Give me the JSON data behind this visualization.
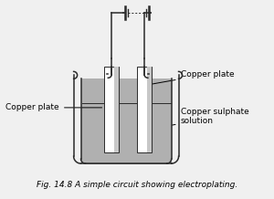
{
  "bg_color": "#f0f0f0",
  "line_color": "#2a2a2a",
  "solution_color": "#b0b0b0",
  "beaker_wall_color": "#a8a8a8",
  "plate_face_color": "#ffffff",
  "plate_shade_color": "#c8c8c8",
  "title": "Fig. 14.8 A simple circuit showing electroplating.",
  "label_copper_plate_left": "Copper plate",
  "label_copper_plate_right": "Copper plate",
  "label_solution": "Copper sulphate\nsolution",
  "title_fontsize": 6.5,
  "label_fontsize": 6.5,
  "lw": 1.1
}
